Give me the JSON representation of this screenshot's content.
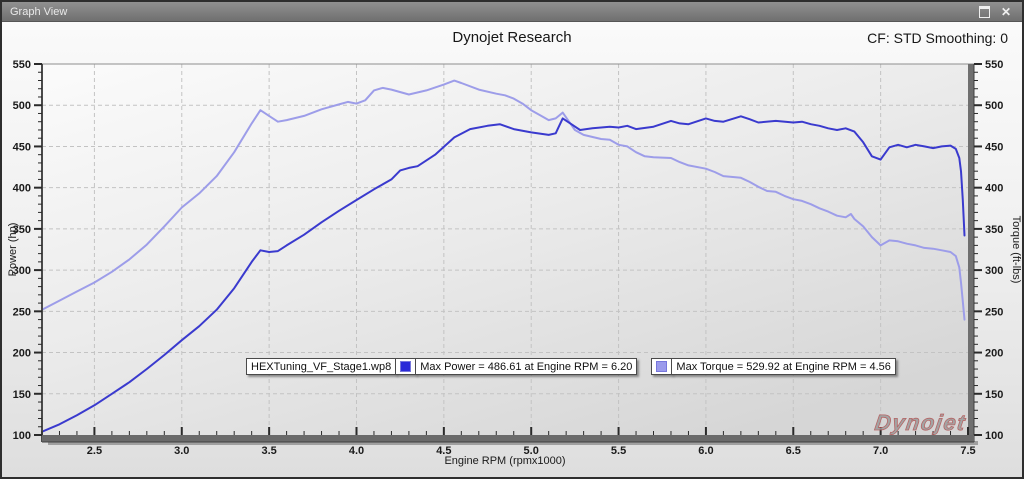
{
  "window": {
    "title": "Graph View"
  },
  "header": {
    "center": "Dynojet Research",
    "right": "CF: STD Smoothing: 0"
  },
  "legend": {
    "file": "HEXTuning_VF_Stage1.wp8",
    "max_power_label": "Max Power = 486.61 at Engine RPM = 6.20",
    "max_torque_label": "Max Torque = 529.92 at Engine RPM = 4.56",
    "power_swatch_color": "#2a2ad8",
    "torque_swatch_color": "#9a9aec"
  },
  "watermark": "Dynojet",
  "chart_data": {
    "type": "line",
    "title": "Dynojet Research",
    "xlabel": "Engine RPM (rpmx1000)",
    "ylabel_left": "Power (hp)",
    "ylabel_right": "Torque (ft-lbs)",
    "xlim": [
      2.2,
      7.5
    ],
    "ylim": [
      100,
      550
    ],
    "x_ticks_major": [
      2.5,
      3.0,
      3.5,
      4.0,
      4.5,
      5.0,
      5.5,
      6.0,
      6.5,
      7.0,
      7.5
    ],
    "y_ticks_major": [
      100,
      150,
      200,
      250,
      300,
      350,
      400,
      450,
      500,
      550
    ],
    "x_minor_step": 0.1,
    "y_minor_step": 10,
    "grid": "dashed",
    "legend_position": "bottom-center",
    "annotations": {
      "max_power": {
        "value": 486.61,
        "rpm": 6.2
      },
      "max_torque": {
        "value": 529.92,
        "rpm": 4.56
      }
    },
    "series": [
      {
        "name": "Power (hp)",
        "axis": "left",
        "color": "#3a3ace",
        "points": [
          [
            2.2,
            104
          ],
          [
            2.3,
            113
          ],
          [
            2.4,
            124
          ],
          [
            2.5,
            136
          ],
          [
            2.6,
            150
          ],
          [
            2.7,
            164
          ],
          [
            2.8,
            180
          ],
          [
            2.9,
            197
          ],
          [
            3.0,
            215
          ],
          [
            3.1,
            232
          ],
          [
            3.2,
            252
          ],
          [
            3.3,
            278
          ],
          [
            3.4,
            310
          ],
          [
            3.45,
            324
          ],
          [
            3.5,
            322
          ],
          [
            3.55,
            323
          ],
          [
            3.6,
            330
          ],
          [
            3.7,
            343
          ],
          [
            3.8,
            358
          ],
          [
            3.9,
            372
          ],
          [
            4.0,
            385
          ],
          [
            4.1,
            398
          ],
          [
            4.2,
            410
          ],
          [
            4.25,
            421
          ],
          [
            4.3,
            424
          ],
          [
            4.35,
            426
          ],
          [
            4.45,
            440
          ],
          [
            4.56,
            461
          ],
          [
            4.65,
            471
          ],
          [
            4.75,
            475
          ],
          [
            4.82,
            477
          ],
          [
            4.9,
            471
          ],
          [
            5.0,
            467
          ],
          [
            5.1,
            464
          ],
          [
            5.14,
            466
          ],
          [
            5.18,
            484
          ],
          [
            5.23,
            477
          ],
          [
            5.28,
            470
          ],
          [
            5.35,
            472
          ],
          [
            5.45,
            474
          ],
          [
            5.5,
            473
          ],
          [
            5.55,
            475
          ],
          [
            5.6,
            471
          ],
          [
            5.7,
            474
          ],
          [
            5.8,
            481
          ],
          [
            5.85,
            478
          ],
          [
            5.9,
            477
          ],
          [
            6.0,
            484
          ],
          [
            6.05,
            481
          ],
          [
            6.1,
            480
          ],
          [
            6.2,
            486.6
          ],
          [
            6.25,
            483
          ],
          [
            6.3,
            479
          ],
          [
            6.4,
            481
          ],
          [
            6.5,
            479
          ],
          [
            6.55,
            480
          ],
          [
            6.6,
            477
          ],
          [
            6.65,
            475
          ],
          [
            6.7,
            472
          ],
          [
            6.75,
            470
          ],
          [
            6.8,
            472
          ],
          [
            6.85,
            468
          ],
          [
            6.9,
            455
          ],
          [
            6.95,
            438
          ],
          [
            7.0,
            434
          ],
          [
            7.05,
            449
          ],
          [
            7.1,
            452
          ],
          [
            7.15,
            449
          ],
          [
            7.2,
            452
          ],
          [
            7.25,
            450
          ],
          [
            7.3,
            448
          ],
          [
            7.35,
            450
          ],
          [
            7.4,
            451
          ],
          [
            7.43,
            447
          ],
          [
            7.45,
            436
          ],
          [
            7.46,
            420
          ],
          [
            7.47,
            385
          ],
          [
            7.48,
            342
          ]
        ]
      },
      {
        "name": "Torque (ft-lbs)",
        "axis": "right",
        "color": "#9d9de9",
        "points": [
          [
            2.2,
            252
          ],
          [
            2.3,
            263
          ],
          [
            2.4,
            274
          ],
          [
            2.5,
            285
          ],
          [
            2.6,
            298
          ],
          [
            2.7,
            313
          ],
          [
            2.8,
            331
          ],
          [
            2.9,
            353
          ],
          [
            3.0,
            376
          ],
          [
            3.1,
            393
          ],
          [
            3.2,
            414
          ],
          [
            3.3,
            443
          ],
          [
            3.4,
            478
          ],
          [
            3.45,
            494
          ],
          [
            3.5,
            487
          ],
          [
            3.55,
            480
          ],
          [
            3.6,
            482
          ],
          [
            3.7,
            487
          ],
          [
            3.8,
            495
          ],
          [
            3.9,
            501
          ],
          [
            3.95,
            504
          ],
          [
            4.0,
            502
          ],
          [
            4.05,
            506
          ],
          [
            4.1,
            518
          ],
          [
            4.15,
            521
          ],
          [
            4.2,
            519
          ],
          [
            4.3,
            513
          ],
          [
            4.4,
            518
          ],
          [
            4.5,
            525
          ],
          [
            4.56,
            529.9
          ],
          [
            4.6,
            527
          ],
          [
            4.7,
            519
          ],
          [
            4.8,
            514
          ],
          [
            4.85,
            512
          ],
          [
            4.9,
            508
          ],
          [
            4.95,
            502
          ],
          [
            5.0,
            494
          ],
          [
            5.05,
            488
          ],
          [
            5.1,
            482
          ],
          [
            5.14,
            484
          ],
          [
            5.18,
            491
          ],
          [
            5.25,
            470
          ],
          [
            5.3,
            464
          ],
          [
            5.4,
            459
          ],
          [
            5.45,
            458
          ],
          [
            5.5,
            452
          ],
          [
            5.55,
            450
          ],
          [
            5.6,
            443
          ],
          [
            5.65,
            438
          ],
          [
            5.7,
            437
          ],
          [
            5.8,
            436
          ],
          [
            5.85,
            431
          ],
          [
            5.9,
            427
          ],
          [
            6.0,
            423
          ],
          [
            6.05,
            419
          ],
          [
            6.1,
            414
          ],
          [
            6.2,
            412
          ],
          [
            6.25,
            407
          ],
          [
            6.3,
            401
          ],
          [
            6.35,
            396
          ],
          [
            6.4,
            395
          ],
          [
            6.45,
            390
          ],
          [
            6.5,
            386
          ],
          [
            6.55,
            384
          ],
          [
            6.6,
            380
          ],
          [
            6.65,
            375
          ],
          [
            6.7,
            371
          ],
          [
            6.75,
            366
          ],
          [
            6.8,
            364
          ],
          [
            6.83,
            368
          ],
          [
            6.85,
            362
          ],
          [
            6.9,
            353
          ],
          [
            6.95,
            340
          ],
          [
            7.0,
            330
          ],
          [
            7.05,
            336
          ],
          [
            7.1,
            335
          ],
          [
            7.15,
            332
          ],
          [
            7.2,
            330
          ],
          [
            7.25,
            327
          ],
          [
            7.3,
            326
          ],
          [
            7.35,
            324
          ],
          [
            7.4,
            322
          ],
          [
            7.43,
            317
          ],
          [
            7.45,
            303
          ],
          [
            7.46,
            285
          ],
          [
            7.47,
            262
          ],
          [
            7.48,
            240
          ]
        ]
      }
    ]
  }
}
